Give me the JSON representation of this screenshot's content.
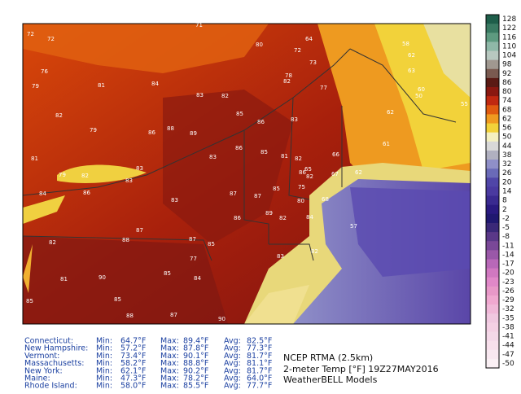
{
  "title_lines": [
    "NCEP RTMA (2.5km)",
    "2-meter Temp [°F] 19Z27MAY2016",
    "WeatherBELL Models"
  ],
  "colorbar": {
    "labels": [
      "128",
      "122",
      "116",
      "110",
      "104",
      "98",
      "92",
      "86",
      "80",
      "74",
      "68",
      "62",
      "56",
      "50",
      "44",
      "38",
      "32",
      "26",
      "20",
      "14",
      "8",
      "2",
      "-2",
      "-5",
      "-8",
      "-11",
      "-14",
      "-17",
      "-20",
      "-23",
      "-26",
      "-29",
      "-32",
      "-35",
      "-38",
      "-41",
      "-44",
      "-47",
      "-50"
    ]
  },
  "stats": {
    "labels": [
      "Min:",
      "Max:",
      "Avg:"
    ],
    "rows": [
      [
        "Connecticut:",
        "64.7°F",
        "89.4°F",
        "82.5°F"
      ],
      [
        "New Hampshire:",
        "57.2°F",
        "87.8°F",
        "77.3°F"
      ],
      [
        "Vermont:",
        "73.4°F",
        "90.1°F",
        "81.7°F"
      ],
      [
        "Massachusetts:",
        "58.2°F",
        "88.8°F",
        "81.1°F"
      ],
      [
        "New York:",
        "62.1°F",
        "90.2°F",
        "81.7°F"
      ],
      [
        "Maine:",
        "47.3°F",
        "78.2°F",
        "64.0°F"
      ],
      [
        "Rhode Island:",
        "58.0°F",
        "85.5°F",
        "77.7°F"
      ]
    ]
  },
  "map_labels": [
    "72",
    "72",
    "71",
    "80",
    "64",
    "72",
    "73",
    "78",
    "82",
    "77",
    "81",
    "84",
    "83",
    "82",
    "79",
    "76",
    "82",
    "79",
    "86",
    "88",
    "89",
    "85",
    "86",
    "83",
    "81",
    "79",
    "82",
    "83",
    "83",
    "86",
    "85",
    "81",
    "82",
    "86",
    "82",
    "75",
    "84",
    "86",
    "83",
    "83",
    "87",
    "87",
    "85",
    "80",
    "89",
    "86",
    "82",
    "84",
    "88",
    "87",
    "87",
    "85",
    "82",
    "83",
    "85",
    "90",
    "84",
    "85",
    "88",
    "87",
    "90",
    "77",
    "82",
    "81",
    "85",
    "65",
    "67",
    "66",
    "68",
    "62",
    "61",
    "60",
    "58",
    "62",
    "50",
    "63",
    "55",
    "57",
    "62"
  ]
}
